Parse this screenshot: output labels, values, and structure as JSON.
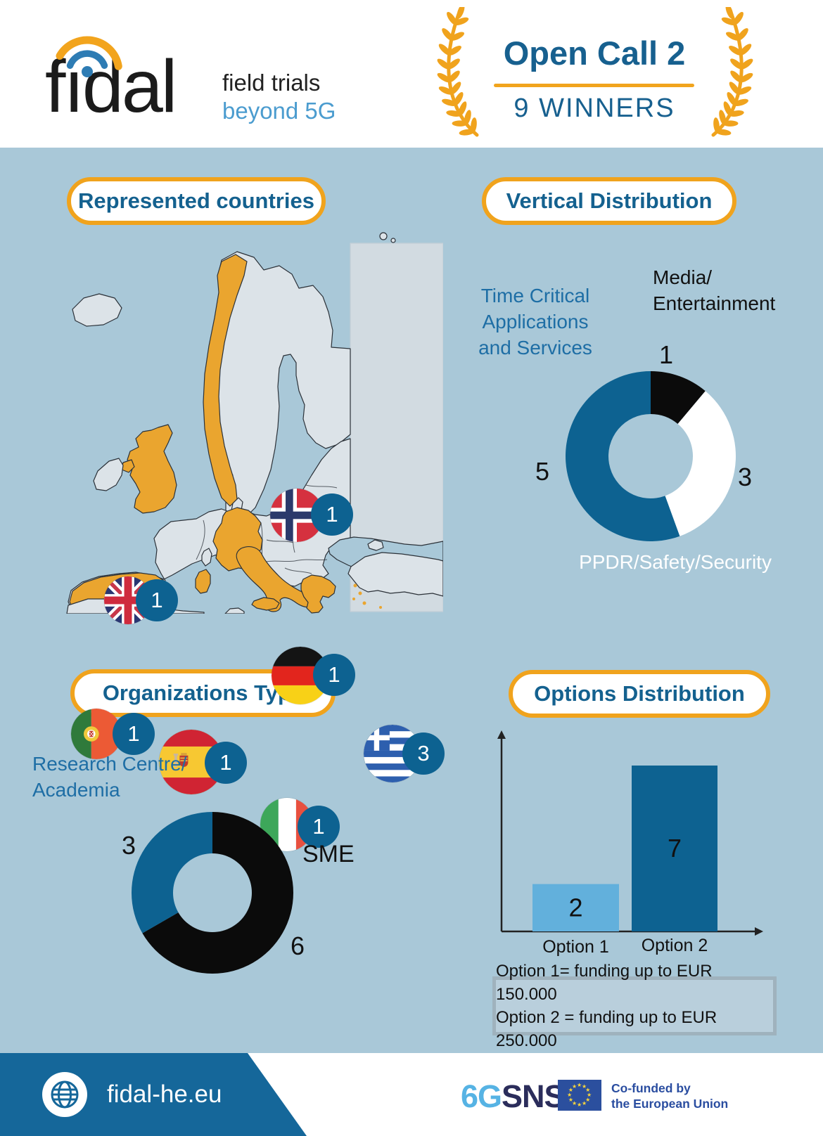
{
  "header": {
    "logo_text": "fidal",
    "tagline_line1": "field trials",
    "tagline_line2": "beyond 5G",
    "award_title": "Open Call 2",
    "award_subtitle": "9 WINNERS"
  },
  "sections": {
    "countries": {
      "title": "Represented countries"
    },
    "vertical": {
      "title": "Vertical Distribution"
    },
    "org": {
      "title": "Organizations Type"
    },
    "options": {
      "title": "Options Distribution"
    }
  },
  "map": {
    "markers": [
      {
        "country": "norway",
        "label": "Norway",
        "count": 1
      },
      {
        "country": "uk",
        "label": "United Kingdom",
        "count": 1
      },
      {
        "country": "germany",
        "label": "Germany",
        "count": 1
      },
      {
        "country": "portugal",
        "label": "Portugal",
        "count": 1
      },
      {
        "country": "spain",
        "label": "Spain",
        "count": 1
      },
      {
        "country": "greece",
        "label": "Greece",
        "count": 3
      },
      {
        "country": "italy",
        "label": "Italy",
        "count": 1
      }
    ]
  },
  "chart_data": [
    {
      "id": "vertical_distribution",
      "type": "pie",
      "donut": true,
      "title": "Vertical Distribution",
      "start": "top",
      "direction": "clockwise",
      "slices": [
        {
          "label": "Media/Entertainment",
          "label_lines": [
            "Media/",
            "Entertainment"
          ],
          "value": 1,
          "color": "#0b0b0b"
        },
        {
          "label": "PPDR/Safety/Security",
          "label_lines": [
            "PPDR/Safety/Security"
          ],
          "value": 3,
          "color": "#ffffff"
        },
        {
          "label": "Time Critical Applications and Services",
          "label_lines": [
            "Time Critical",
            "Applications",
            "and Services"
          ],
          "value": 5,
          "color": "#0d6291"
        }
      ]
    },
    {
      "id": "organizations_type",
      "type": "pie",
      "donut": true,
      "title": "Organizations Type",
      "start": "top",
      "direction": "clockwise",
      "slices": [
        {
          "label": "SME",
          "label_lines": [
            "SME"
          ],
          "value": 6,
          "color": "#0b0b0b"
        },
        {
          "label": "Research Centre/Academia",
          "label_lines": [
            "Research Centre/",
            "Academia"
          ],
          "value": 3,
          "color": "#0d6291"
        }
      ]
    },
    {
      "id": "options_distribution",
      "type": "bar",
      "title": "Options Distribution",
      "categories": [
        "Option 1",
        "Option 2"
      ],
      "values": [
        2,
        7
      ],
      "colors": [
        "#62b0dc",
        "#0d6291"
      ],
      "ylim": [
        0,
        8
      ],
      "grid": false
    }
  ],
  "legend": {
    "line1": "Option 1= funding up to EUR 150.000",
    "line2": "Option 2 = funding up to EUR 250.000"
  },
  "footer": {
    "website": "fidal-he.eu",
    "sns_logo_light": "6G",
    "sns_logo_dark": "SNS",
    "eu_funding_line1": "Co-funded by",
    "eu_funding_line2": "the European Union"
  },
  "colors": {
    "accent_orange": "#f0a31d",
    "map_highlight": "#eaa52f",
    "primary_blue": "#0d6291",
    "text_blue": "#17608f",
    "light_bar_blue": "#62b0dc",
    "page_background": "#a9c8d8"
  }
}
